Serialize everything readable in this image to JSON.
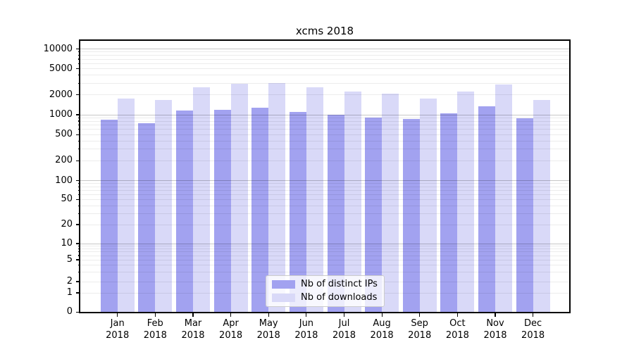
{
  "chart_data": {
    "type": "bar",
    "title": "xcms 2018",
    "categories": [
      "Jan 2018",
      "Feb 2018",
      "Mar 2018",
      "Apr 2018",
      "May 2018",
      "Jun 2018",
      "Jul 2018",
      "Aug 2018",
      "Sep 2018",
      "Oct 2018",
      "Nov 2018",
      "Dec 2018"
    ],
    "series": [
      {
        "name": "Nb of distinct IPs",
        "color": "#a2a2f0",
        "values": [
          840,
          750,
          1170,
          1190,
          1290,
          1110,
          1000,
          900,
          870,
          1050,
          1330,
          880
        ]
      },
      {
        "name": "Nb of downloads",
        "color": "#d9d9f8",
        "values": [
          1780,
          1670,
          2640,
          2930,
          3000,
          2590,
          2240,
          2120,
          1750,
          2280,
          2900,
          1660
        ]
      }
    ],
    "xlabel": "",
    "ylabel": "",
    "y_scale": "log-like scale including 0",
    "y_ticks": [
      0,
      1,
      2,
      5,
      10,
      20,
      50,
      100,
      200,
      500,
      1000,
      2000,
      5000,
      10000
    ],
    "ylim": [
      0,
      13000
    ],
    "grid": "horizontal major (decade) and minor gridlines",
    "legend_position": "lower center"
  }
}
